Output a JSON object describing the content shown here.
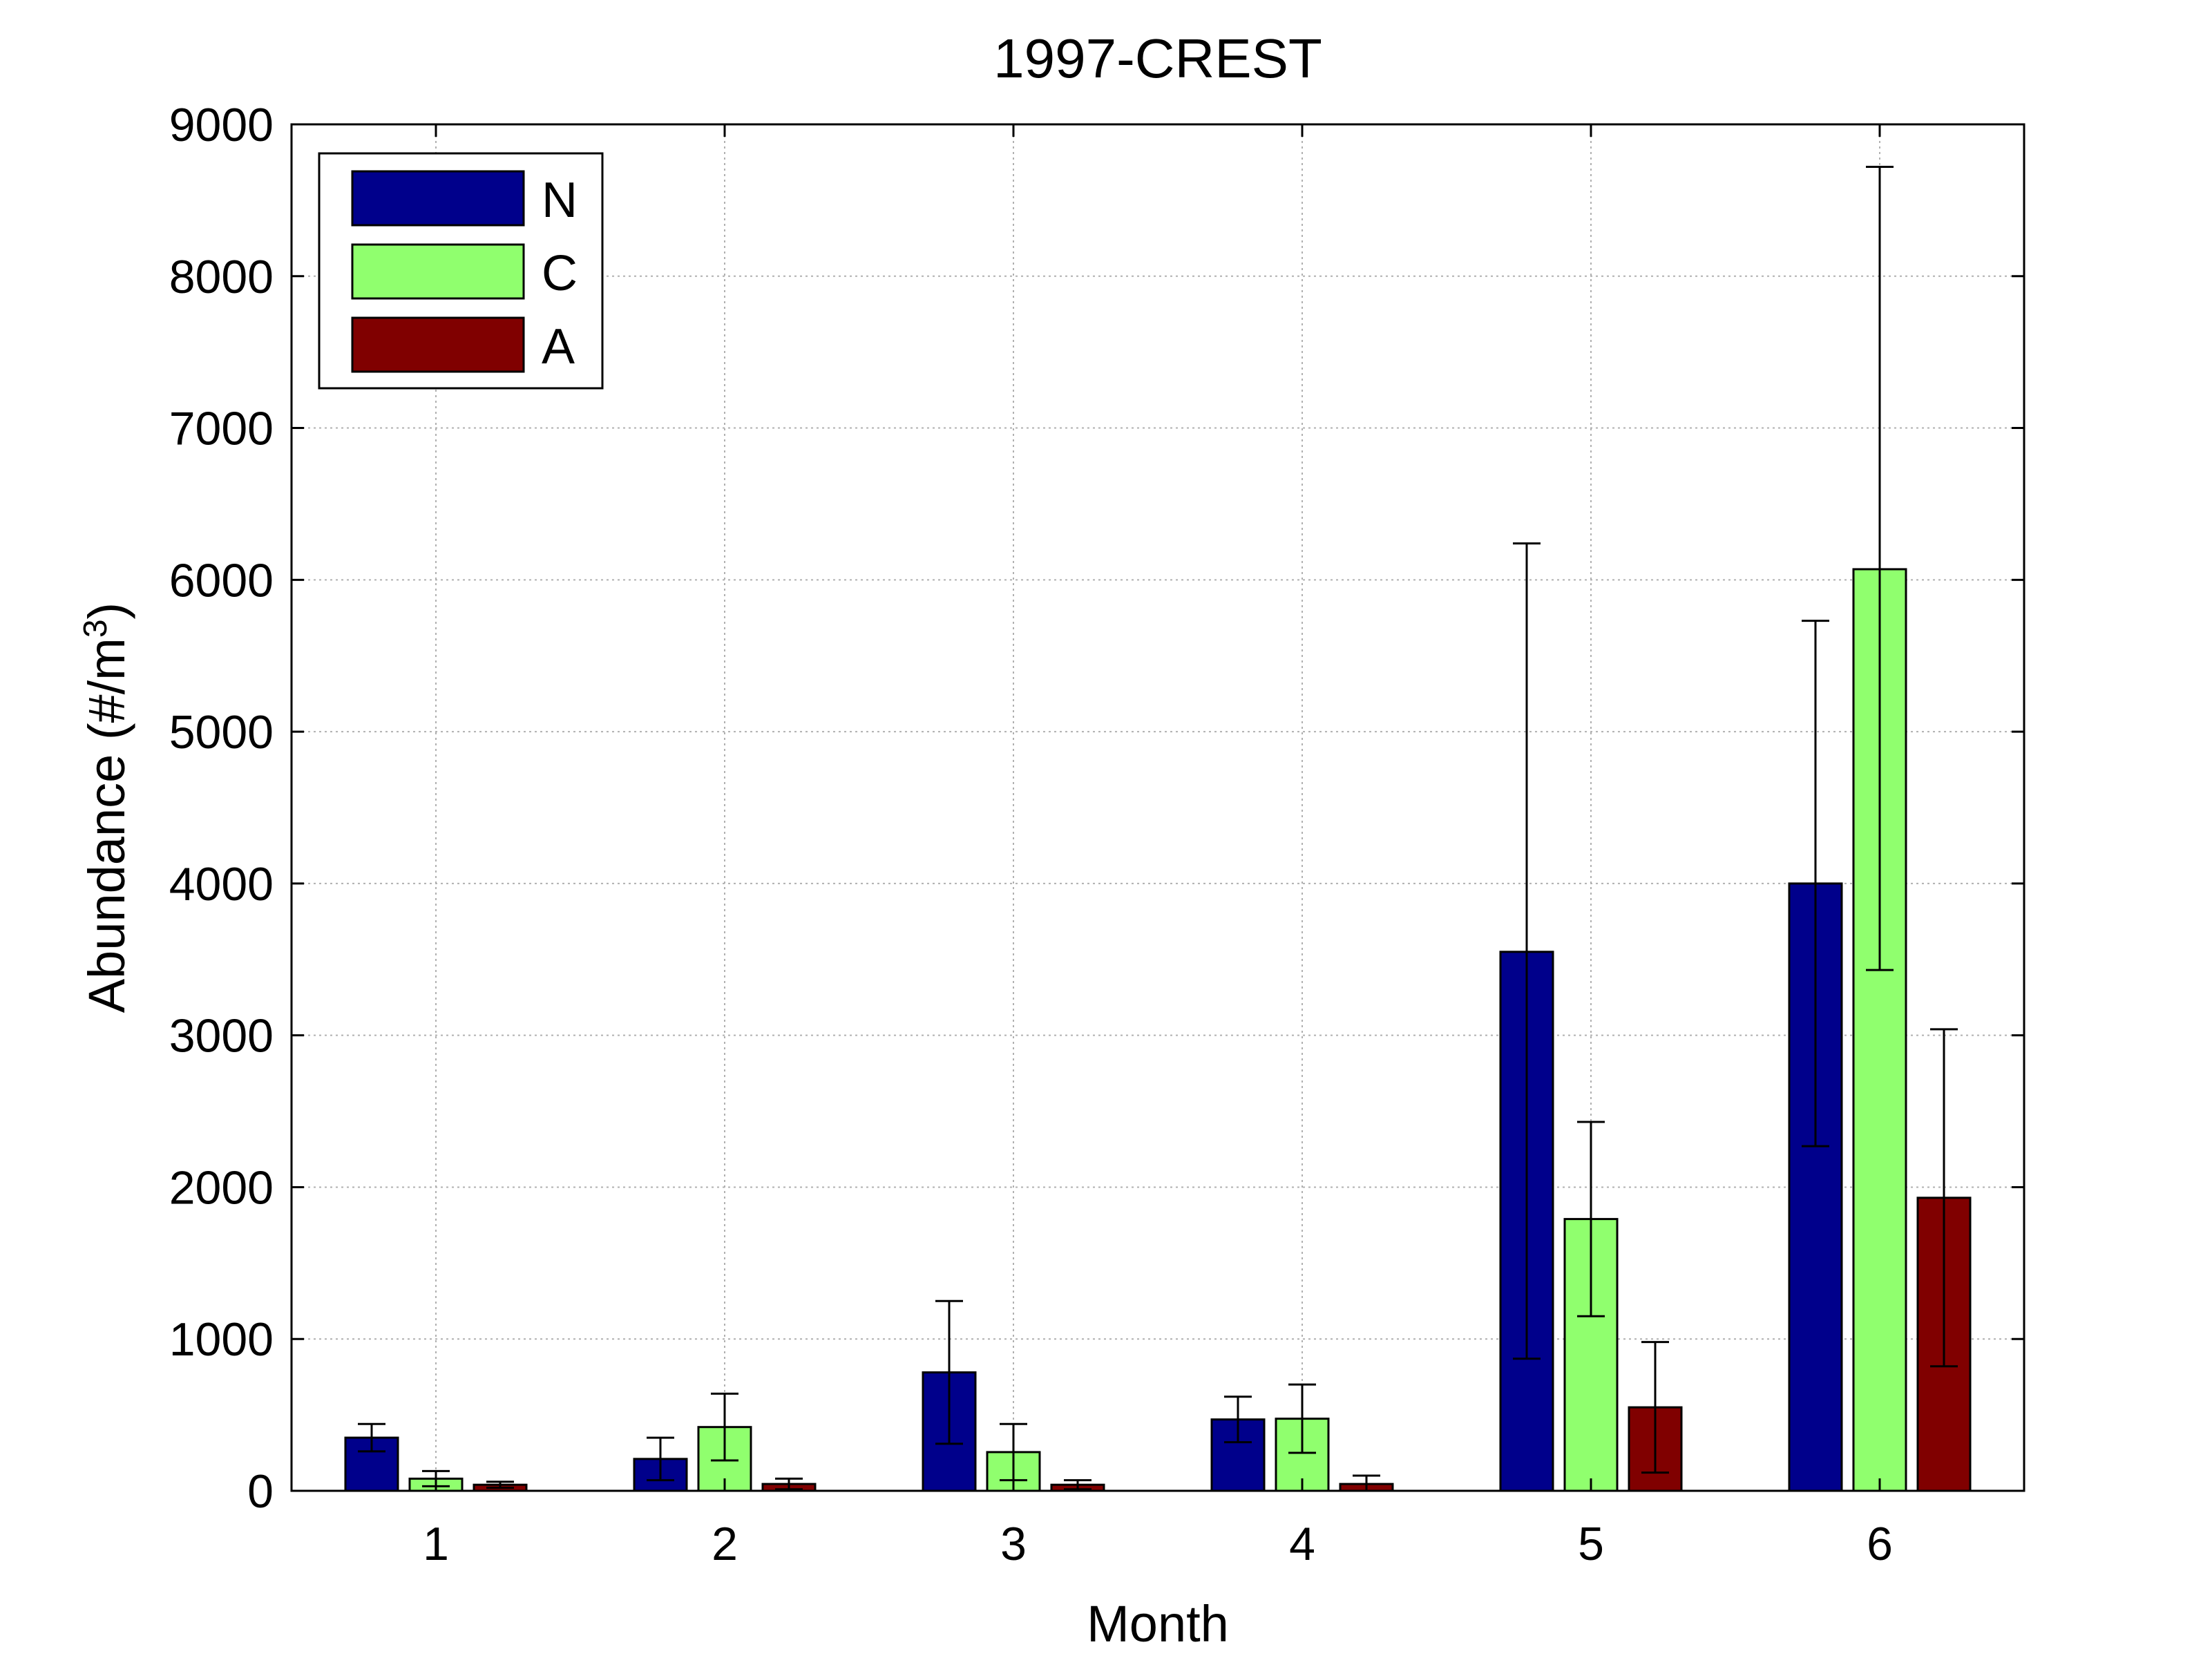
{
  "chart_data": {
    "type": "bar",
    "title": "1997-CREST",
    "xlabel": "Month",
    "ylabel": "Abundance (#/m",
    "ylabel_superscript": "3",
    "ylabel_suffix": ")",
    "categories": [
      "1",
      "2",
      "3",
      "4",
      "5",
      "6"
    ],
    "ylim": [
      0,
      9000
    ],
    "yticks": [
      0,
      1000,
      2000,
      3000,
      4000,
      5000,
      6000,
      7000,
      8000,
      9000
    ],
    "ytick_labels": [
      "0",
      "1000",
      "2000",
      "3000",
      "4000",
      "5000",
      "6000",
      "7000",
      "8000",
      "9000"
    ],
    "grid": true,
    "legend_position": "top-left",
    "series": [
      {
        "name": "N",
        "color": "#00008b",
        "values": [
          350,
          210,
          780,
          470,
          3550,
          4000
        ],
        "error_low": [
          260,
          70,
          310,
          320,
          870,
          2270
        ],
        "error_high": [
          440,
          350,
          1250,
          620,
          6240,
          5730
        ]
      },
      {
        "name": "C",
        "color": "#90ff6e",
        "values": [
          80,
          420,
          255,
          475,
          1790,
          6070
        ],
        "error_low": [
          30,
          200,
          70,
          250,
          1150,
          3430
        ],
        "error_high": [
          130,
          640,
          440,
          700,
          2430,
          8720
        ]
      },
      {
        "name": "A",
        "color": "#800000",
        "values": [
          40,
          45,
          40,
          45,
          550,
          1930
        ],
        "error_low": [
          20,
          10,
          10,
          0,
          120,
          820
        ],
        "error_high": [
          60,
          80,
          70,
          100,
          980,
          3040
        ]
      }
    ]
  }
}
